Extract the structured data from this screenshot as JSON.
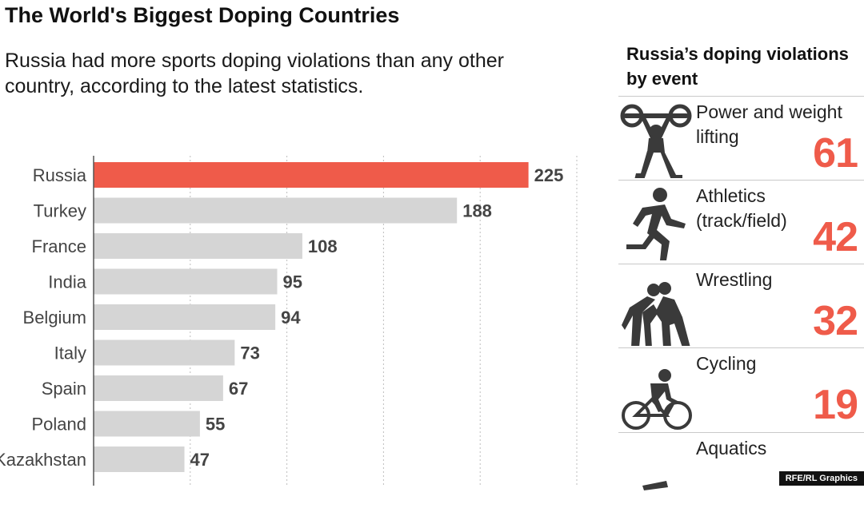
{
  "title": "The World's Biggest Doping Countries",
  "subtitle": "Russia had more sports doping violations than any other country, according to the latest statistics.",
  "chart_data": {
    "type": "bar",
    "orientation": "horizontal",
    "categories": [
      "Russia",
      "Turkey",
      "France",
      "India",
      "Belgium",
      "Italy",
      "Spain",
      "Poland",
      "Kazakhstan"
    ],
    "values": [
      225,
      188,
      108,
      95,
      94,
      73,
      67,
      55,
      47
    ],
    "xlim": [
      0,
      250
    ],
    "grid": true,
    "colors": {
      "highlight": "#ef5b4a",
      "bar": "#d5d5d5"
    }
  },
  "panel": {
    "title": "Russia’s doping violations by event",
    "events": [
      {
        "label": "Power and weight lifting",
        "value": "61",
        "icon": "weightlifting-icon"
      },
      {
        "label": "Athletics (track/field)",
        "value": "42",
        "icon": "running-icon"
      },
      {
        "label": "Wrestling",
        "value": "32",
        "icon": "wrestling-icon"
      },
      {
        "label": "Cycling",
        "value": "19",
        "icon": "cycling-icon"
      },
      {
        "label": "Aquatics",
        "value": "",
        "icon": "swimming-icon"
      }
    ]
  },
  "credit": "RFE/RL Graphics"
}
